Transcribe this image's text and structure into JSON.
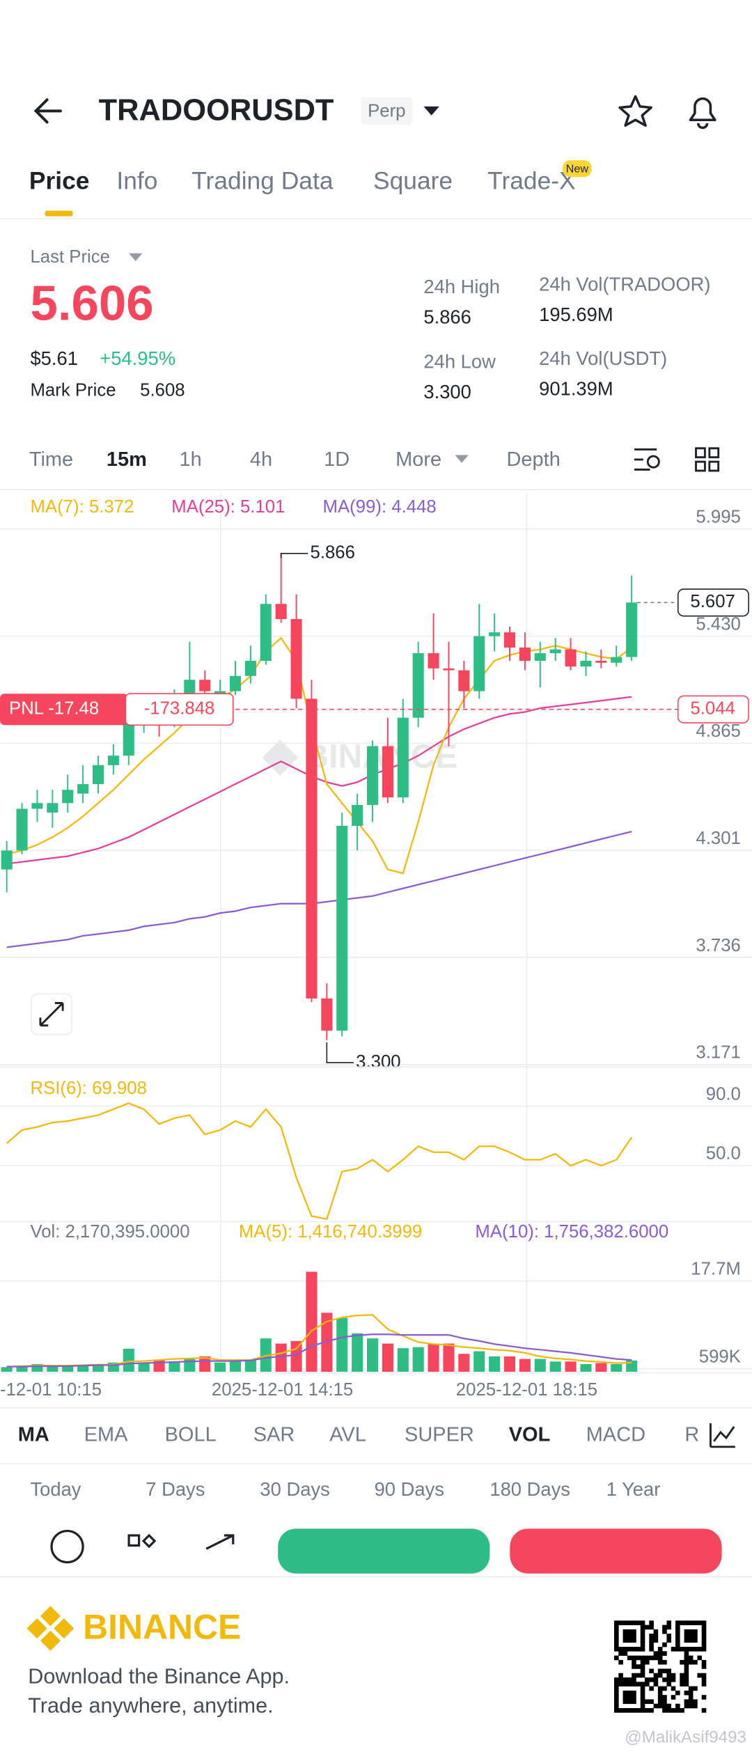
{
  "header": {
    "title": "TRADOORUSDT",
    "badge": "Perp"
  },
  "tabs": [
    "Price",
    "Info",
    "Trading Data",
    "Square",
    "Trade-X"
  ],
  "tab_badge": "New",
  "ticker": {
    "last_price_label": "Last Price",
    "last_price": "5.606",
    "usd_price": "$5.61",
    "change": "+54.95%",
    "mark_price_label": "Mark Price",
    "mark_price": "5.608",
    "stats": [
      {
        "label": "24h High",
        "value": "5.866"
      },
      {
        "label": "24h Vol(TRADOOR)",
        "value": "195.69M"
      },
      {
        "label": "24h Low",
        "value": "3.300"
      },
      {
        "label": "24h Vol(USDT)",
        "value": "901.39M"
      }
    ]
  },
  "intervals": [
    "Time",
    "15m",
    "1h",
    "4h",
    "1D",
    "More",
    "Depth"
  ],
  "chart": {
    "type": "candlestick",
    "up_color": "#2ebd85",
    "down_color": "#f6465d",
    "ylim": [
      3.159,
      6.184
    ],
    "yticks": [
      5.995,
      {
        "value": 5.43,
        "label": "5.430"
      },
      4.865,
      4.301,
      3.736,
      3.171
    ],
    "candles": [
      [
        4.2,
        4.35,
        4.08,
        4.3
      ],
      [
        4.3,
        4.55,
        4.28,
        4.52
      ],
      [
        4.52,
        4.62,
        4.45,
        4.55
      ],
      [
        4.5,
        4.62,
        4.42,
        4.55
      ],
      [
        4.55,
        4.7,
        4.5,
        4.62
      ],
      [
        4.6,
        4.75,
        4.55,
        4.65
      ],
      [
        4.65,
        4.8,
        4.6,
        4.75
      ],
      [
        4.75,
        4.86,
        4.7,
        4.8
      ],
      [
        4.8,
        5.05,
        4.75,
        4.98
      ],
      [
        4.98,
        5.12,
        4.92,
        5.02
      ],
      [
        5.02,
        5.1,
        4.9,
        5.0
      ],
      [
        5.0,
        5.15,
        4.95,
        5.05
      ],
      [
        5.05,
        5.4,
        5.0,
        5.2
      ],
      [
        5.2,
        5.25,
        5.1,
        5.14
      ],
      [
        5.12,
        5.2,
        5.08,
        5.14
      ],
      [
        5.14,
        5.3,
        5.12,
        5.22
      ],
      [
        5.22,
        5.38,
        5.18,
        5.3
      ],
      [
        5.3,
        5.65,
        5.28,
        5.6
      ],
      [
        5.6,
        5.866,
        5.5,
        5.52
      ],
      [
        5.52,
        5.65,
        5.05,
        5.1
      ],
      [
        5.1,
        5.2,
        3.5,
        3.52
      ],
      [
        3.52,
        3.6,
        3.3,
        3.35
      ],
      [
        3.35,
        4.5,
        3.32,
        4.43
      ],
      [
        4.43,
        4.6,
        4.3,
        4.54
      ],
      [
        4.54,
        4.88,
        4.45,
        4.85
      ],
      [
        4.85,
        5.0,
        4.55,
        4.58
      ],
      [
        4.58,
        5.1,
        4.55,
        5.0
      ],
      [
        5.0,
        5.4,
        4.95,
        5.34
      ],
      [
        5.34,
        5.55,
        5.2,
        5.26
      ],
      [
        5.26,
        5.4,
        4.85,
        5.25
      ],
      [
        5.25,
        5.3,
        5.05,
        5.14
      ],
      [
        5.14,
        5.6,
        5.1,
        5.43
      ],
      [
        5.43,
        5.55,
        5.35,
        5.45
      ],
      [
        5.45,
        5.48,
        5.3,
        5.37
      ],
      [
        5.37,
        5.45,
        5.25,
        5.3
      ],
      [
        5.3,
        5.4,
        5.16,
        5.34
      ],
      [
        5.34,
        5.42,
        5.3,
        5.36
      ],
      [
        5.36,
        5.42,
        5.25,
        5.27
      ],
      [
        5.27,
        5.35,
        5.22,
        5.3
      ],
      [
        5.3,
        5.36,
        5.26,
        5.29
      ],
      [
        5.29,
        5.38,
        5.27,
        5.32
      ],
      [
        5.32,
        5.75,
        5.3,
        5.607
      ]
    ],
    "ma_lines": [
      {
        "label": "MA(7): 5.372",
        "color": "#f0b90b",
        "values": [
          4.28,
          4.3,
          4.33,
          4.37,
          4.42,
          4.48,
          4.55,
          4.62,
          4.7,
          4.78,
          4.85,
          4.92,
          5.0,
          5.05,
          5.1,
          5.15,
          5.22,
          5.35,
          5.42,
          5.3,
          4.95,
          4.65,
          4.55,
          4.45,
          4.35,
          4.2,
          4.18,
          4.45,
          4.75,
          4.95,
          5.1,
          5.2,
          5.3,
          5.33,
          5.35,
          5.36,
          5.38,
          5.36,
          5.34,
          5.32,
          5.31,
          5.37
        ]
      },
      {
        "label": "MA(25): 5.101",
        "color": "#e0409a",
        "values": [
          4.23,
          4.24,
          4.25,
          4.26,
          4.27,
          4.29,
          4.31,
          4.34,
          4.37,
          4.41,
          4.45,
          4.49,
          4.53,
          4.57,
          4.61,
          4.65,
          4.69,
          4.73,
          4.77,
          4.73,
          4.69,
          4.66,
          4.64,
          4.66,
          4.7,
          4.73,
          4.76,
          4.8,
          4.85,
          4.9,
          4.94,
          4.97,
          5.0,
          5.02,
          5.03,
          5.05,
          5.06,
          5.07,
          5.08,
          5.09,
          5.1,
          5.11
        ]
      },
      {
        "label": "MA(99): 4.448",
        "color": "#8a5cd0",
        "values": [
          3.79,
          3.8,
          3.81,
          3.82,
          3.83,
          3.85,
          3.86,
          3.87,
          3.88,
          3.9,
          3.91,
          3.92,
          3.94,
          3.95,
          3.97,
          3.98,
          4.0,
          4.01,
          4.02,
          4.02,
          4.02,
          4.03,
          4.04,
          4.05,
          4.06,
          4.08,
          4.1,
          4.12,
          4.14,
          4.16,
          4.18,
          4.2,
          4.22,
          4.24,
          4.26,
          4.28,
          4.3,
          4.32,
          4.34,
          4.36,
          4.38,
          4.4
        ]
      }
    ],
    "low_label": "3.300",
    "pnl_label": "PNL -17.48",
    "pnl_value": "-173.848",
    "pnl_price": 5.044,
    "watermark": "BINANCE"
  },
  "rsi": {
    "label": "RSI(6): 69.908",
    "color": "#f0b90b",
    "ylim": [
      12.3,
      114.2
    ],
    "yticks": [
      {
        "value": 90,
        "label": "90.0"
      },
      {
        "value": 50,
        "label": "50.0"
      }
    ],
    "values": [
      65,
      74,
      76,
      79,
      80,
      82,
      84,
      88,
      92,
      88,
      78,
      82,
      84,
      71,
      74,
      80,
      76,
      88,
      76,
      42,
      16,
      14,
      46,
      48,
      54,
      46,
      54,
      63,
      59,
      59,
      54,
      63,
      63,
      59,
      54,
      54,
      58,
      50,
      54,
      50,
      54,
      69
    ]
  },
  "volume": {
    "label": "Vol: 2,170,395.0000",
    "ylim": [
      0,
      23.82
    ],
    "yticks": [
      {
        "value": 17.7,
        "label": "17.7M"
      },
      {
        "value": 0.599,
        "label": "599K"
      }
    ],
    "values": [
      0.9,
      1.2,
      1.5,
      1.2,
      1.3,
      1.3,
      1.5,
      1.8,
      4.5,
      1.8,
      2.3,
      2.0,
      2.5,
      3.0,
      1.8,
      2.0,
      2.3,
      6.5,
      5.5,
      6.0,
      19.5,
      11.5,
      10.5,
      7.5,
      6.5,
      5.5,
      4.6,
      4.8,
      5.5,
      5.5,
      3.5,
      4.0,
      3.0,
      3.0,
      2.5,
      2.5,
      2.0,
      2.0,
      1.5,
      1.7,
      1.5,
      2.2
    ],
    "ma_lines": [
      {
        "label": "MA(5): 1,416,740.3999",
        "color": "#f0b90b",
        "values": [
          1.0,
          1.1,
          1.2,
          1.2,
          1.2,
          1.3,
          1.4,
          1.4,
          2.0,
          2.1,
          2.3,
          2.5,
          2.6,
          2.7,
          2.3,
          2.3,
          2.3,
          3.1,
          3.6,
          4.5,
          8.0,
          9.8,
          10.6,
          11.0,
          11.1,
          8.3,
          7.0,
          5.8,
          5.4,
          5.2,
          4.8,
          4.6,
          4.3,
          4.1,
          3.7,
          3.0,
          2.6,
          2.4,
          2.1,
          1.9,
          1.7,
          1.8
        ]
      },
      {
        "label": "MA(10): 1,756,382.6000",
        "color": "#8a5cd0",
        "values": [
          1.0,
          1.0,
          1.1,
          1.1,
          1.1,
          1.2,
          1.3,
          1.3,
          1.6,
          1.7,
          1.8,
          1.9,
          2.0,
          2.1,
          2.1,
          2.1,
          2.2,
          2.7,
          3.0,
          3.3,
          5.0,
          5.9,
          6.7,
          7.1,
          7.3,
          7.3,
          7.2,
          7.2,
          7.2,
          7.2,
          6.5,
          6.0,
          5.4,
          5.0,
          4.6,
          4.3,
          4.0,
          3.7,
          3.3,
          2.9,
          2.5,
          2.3
        ]
      }
    ]
  },
  "x_labels": [
    "-12-01 10:15",
    "2025-12-01 14:15",
    "2025-12-01 18:15"
  ],
  "indicators": [
    "MA",
    "EMA",
    "BOLL",
    "SAR",
    "AVL",
    "SUPER",
    "VOL",
    "MACD",
    "RSI"
  ],
  "periods": [
    "Today",
    "7 Days",
    "30 Days",
    "90 Days",
    "180 Days",
    "1 Year"
  ],
  "footer": {
    "brand": "BINANCE",
    "line1": "Download the Binance App.",
    "line2": "Trade anywhere, anytime."
  },
  "watermark": "@MalikAsif9493"
}
